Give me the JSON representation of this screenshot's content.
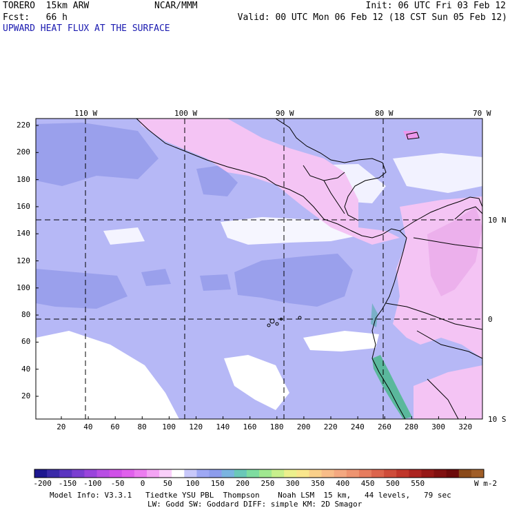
{
  "header": {
    "model": "TORERO",
    "resolution": "15km ARW",
    "org": "NCAR/MMM",
    "init": "Init: 06 UTC Fri 03 Feb 12",
    "fcst_label": "Fcst:",
    "fcst_hours": "66 h",
    "valid": "Valid: 00 UTC Mon 06 Feb 12 (18 CST Sun 05 Feb 12)",
    "field_title": "UPWARD HEAT FLUX AT THE SURFACE"
  },
  "map": {
    "lon_labels": [
      "110 W",
      "100 W",
      "90 W",
      "80 W",
      "70 W"
    ],
    "lat_labels": [
      "10 N",
      "0",
      "10 S"
    ],
    "y_ticks": [
      "220",
      "200",
      "180",
      "160",
      "140",
      "120",
      "100",
      "80",
      "60",
      "40",
      "20"
    ],
    "x_ticks": [
      "20",
      "40",
      "60",
      "80",
      "100",
      "120",
      "140",
      "160",
      "180",
      "200",
      "220",
      "240",
      "260",
      "280",
      "300",
      "320"
    ]
  },
  "colorbar": {
    "labels": [
      "-200",
      "-150",
      "-100",
      "-50",
      "0",
      "50",
      "100",
      "150",
      "200",
      "250",
      "300",
      "350",
      "400",
      "450",
      "500",
      "550"
    ],
    "unit": "W m-2",
    "colors": [
      "#1e1890",
      "#3a2aa8",
      "#5a34c0",
      "#7a3ed0",
      "#9a44dc",
      "#b84ee4",
      "#d050e8",
      "#e060ec",
      "#ec7cf0",
      "#f4a4f4",
      "#fad0fa",
      "#ffffff",
      "#c8c8fa",
      "#9ea8f4",
      "#8c9cec",
      "#7ab4e0",
      "#6ac8b8",
      "#7edca0",
      "#a0e890",
      "#c8f08c",
      "#ecf08c",
      "#fae68c",
      "#fad08a",
      "#f8bc88",
      "#f4a880",
      "#ee9470",
      "#e67c5e",
      "#dc644c",
      "#ce4c3a",
      "#c0362a",
      "#ac2420",
      "#961816",
      "#801010",
      "#6c0a0a",
      "#8a4a1a",
      "#a05e28"
    ]
  },
  "model_info": {
    "line1": "Model Info: V3.3.1   Tiedtke YSU PBL  Thompson    Noah LSM  15 km,   44 levels,   79 sec",
    "line2": "LW: Godd SW: Goddard DIFF: simple KM: 2D Smagor"
  }
}
